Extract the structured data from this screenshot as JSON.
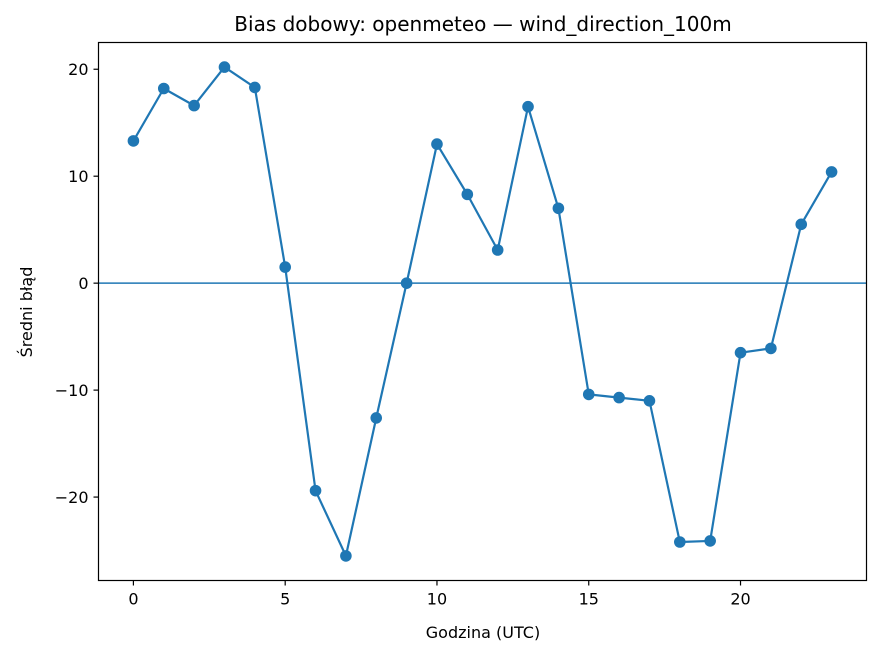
{
  "chart_data": {
    "type": "line",
    "title": "Bias dobowy: openmeteo — wind_direction_100m",
    "xlabel": "Godzina (UTC)",
    "ylabel": "Średni błąd",
    "x": [
      0,
      1,
      2,
      3,
      4,
      5,
      6,
      7,
      8,
      9,
      10,
      11,
      12,
      13,
      14,
      15,
      16,
      17,
      18,
      19,
      20,
      21,
      22,
      23
    ],
    "y": [
      13.3,
      18.2,
      16.6,
      20.2,
      18.3,
      1.5,
      -19.4,
      -25.5,
      -12.6,
      0.0,
      13.0,
      8.3,
      3.1,
      16.5,
      7.0,
      -10.4,
      -10.7,
      -11.0,
      -24.2,
      -24.1,
      -6.5,
      -6.1,
      5.5,
      10.4
    ],
    "xlim": [
      -1.15,
      24.15
    ],
    "ylim": [
      -27.8,
      22.5
    ],
    "xticks": [
      0,
      5,
      10,
      15,
      20
    ],
    "xtick_labels": [
      "0",
      "5",
      "10",
      "15",
      "20"
    ],
    "yticks": [
      -20,
      -10,
      0,
      10,
      20
    ],
    "ytick_labels": [
      "−20",
      "−10",
      "0",
      "10",
      "20"
    ],
    "reference_line": {
      "y": 0
    },
    "grid": false,
    "colors": {
      "series": "#1f77b4",
      "axes": "#000000"
    }
  }
}
